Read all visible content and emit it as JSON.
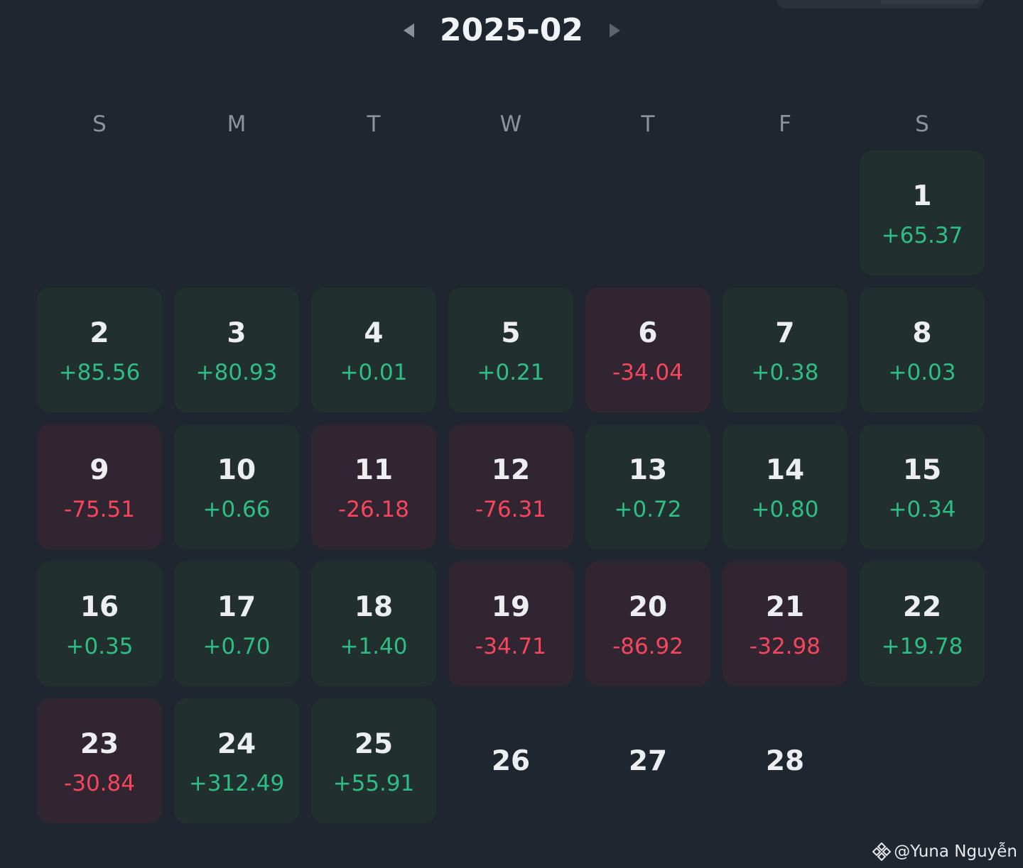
{
  "header": {
    "month_title": "2025-02",
    "prev_icon": "caret-left-icon",
    "next_icon": "caret-right-icon"
  },
  "weekdays": [
    "S",
    "M",
    "T",
    "W",
    "T",
    "F",
    "S"
  ],
  "colors": {
    "positive": "#2ebd85",
    "negative": "#f6465d",
    "positive_bg": "#21302f",
    "negative_bg": "#302530",
    "background": "#1f2630"
  },
  "days": [
    {
      "day": "1",
      "pnl": "+65.37",
      "type": "pos",
      "col": 6,
      "row": 0
    },
    {
      "day": "2",
      "pnl": "+85.56",
      "type": "pos",
      "col": 0,
      "row": 1
    },
    {
      "day": "3",
      "pnl": "+80.93",
      "type": "pos",
      "col": 1,
      "row": 1
    },
    {
      "day": "4",
      "pnl": "+0.01",
      "type": "pos",
      "col": 2,
      "row": 1
    },
    {
      "day": "5",
      "pnl": "+0.21",
      "type": "pos",
      "col": 3,
      "row": 1
    },
    {
      "day": "6",
      "pnl": "-34.04",
      "type": "neg",
      "col": 4,
      "row": 1
    },
    {
      "day": "7",
      "pnl": "+0.38",
      "type": "pos",
      "col": 5,
      "row": 1
    },
    {
      "day": "8",
      "pnl": "+0.03",
      "type": "pos",
      "col": 6,
      "row": 1
    },
    {
      "day": "9",
      "pnl": "-75.51",
      "type": "neg",
      "col": 0,
      "row": 2
    },
    {
      "day": "10",
      "pnl": "+0.66",
      "type": "pos",
      "col": 1,
      "row": 2
    },
    {
      "day": "11",
      "pnl": "-26.18",
      "type": "neg",
      "col": 2,
      "row": 2
    },
    {
      "day": "12",
      "pnl": "-76.31",
      "type": "neg",
      "col": 3,
      "row": 2
    },
    {
      "day": "13",
      "pnl": "+0.72",
      "type": "pos",
      "col": 4,
      "row": 2
    },
    {
      "day": "14",
      "pnl": "+0.80",
      "type": "pos",
      "col": 5,
      "row": 2
    },
    {
      "day": "15",
      "pnl": "+0.34",
      "type": "pos",
      "col": 6,
      "row": 2
    },
    {
      "day": "16",
      "pnl": "+0.35",
      "type": "pos",
      "col": 0,
      "row": 3
    },
    {
      "day": "17",
      "pnl": "+0.70",
      "type": "pos",
      "col": 1,
      "row": 3
    },
    {
      "day": "18",
      "pnl": "+1.40",
      "type": "pos",
      "col": 2,
      "row": 3
    },
    {
      "day": "19",
      "pnl": "-34.71",
      "type": "neg",
      "col": 3,
      "row": 3
    },
    {
      "day": "20",
      "pnl": "-86.92",
      "type": "neg",
      "col": 4,
      "row": 3
    },
    {
      "day": "21",
      "pnl": "-32.98",
      "type": "neg",
      "col": 5,
      "row": 3
    },
    {
      "day": "22",
      "pnl": "+19.78",
      "type": "pos",
      "col": 6,
      "row": 3
    },
    {
      "day": "23",
      "pnl": "-30.84",
      "type": "neg",
      "col": 0,
      "row": 4
    },
    {
      "day": "24",
      "pnl": "+312.49",
      "type": "pos",
      "col": 1,
      "row": 4
    },
    {
      "day": "25",
      "pnl": "+55.91",
      "type": "pos",
      "col": 2,
      "row": 4
    },
    {
      "day": "26",
      "pnl": "",
      "type": "empty",
      "col": 3,
      "row": 4
    },
    {
      "day": "27",
      "pnl": "",
      "type": "empty",
      "col": 4,
      "row": 4
    },
    {
      "day": "28",
      "pnl": "",
      "type": "empty",
      "col": 5,
      "row": 4
    }
  ],
  "watermark": {
    "text": "@Yuna Nguyễn",
    "icon": "binance-logo-icon"
  }
}
